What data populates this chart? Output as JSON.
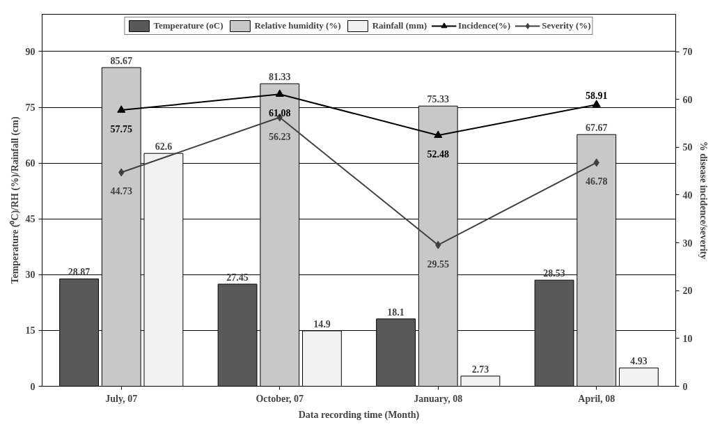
{
  "chart_data": {
    "type": "bar",
    "xlabel": "Data recording time (Month)",
    "ylabel": "Temperature (⁰C)/RH (%)/Rainfall (cm)",
    "y2label": "% disease incidence/severity",
    "categories": [
      "July, 07",
      "October, 07",
      "January, 08",
      "April, 08"
    ],
    "series": [
      {
        "name": "Temperature (oC)",
        "color": "#595959",
        "values": [
          28.87,
          27.45,
          18.1,
          28.53
        ]
      },
      {
        "name": "Relative humidity (%)",
        "color": "#c8c8c8",
        "values": [
          85.67,
          81.33,
          75.33,
          67.67
        ]
      },
      {
        "name": "Rainfall (mm)",
        "color": "#f2f2f2",
        "values": [
          62.6,
          14.9,
          2.73,
          4.93
        ]
      },
      {
        "name": "Incidence(%)",
        "type": "line",
        "axis": "y2",
        "marker": "triangle",
        "color": "#000000",
        "values": [
          57.75,
          61.08,
          52.48,
          58.91
        ]
      },
      {
        "name": "Severity (%)",
        "type": "line",
        "axis": "y2",
        "marker": "diamond",
        "color": "#404040",
        "values": [
          44.73,
          56.23,
          29.55,
          46.78
        ]
      }
    ],
    "ylim": [
      0,
      100
    ],
    "yticks": [
      0,
      15,
      30,
      45,
      60,
      75,
      90
    ],
    "y2lim": [
      0,
      77.8
    ],
    "y2ticks": [
      0,
      10,
      20,
      30,
      40,
      50,
      60,
      70
    ],
    "grid": "y",
    "legend": "top",
    "data_labels": true
  }
}
